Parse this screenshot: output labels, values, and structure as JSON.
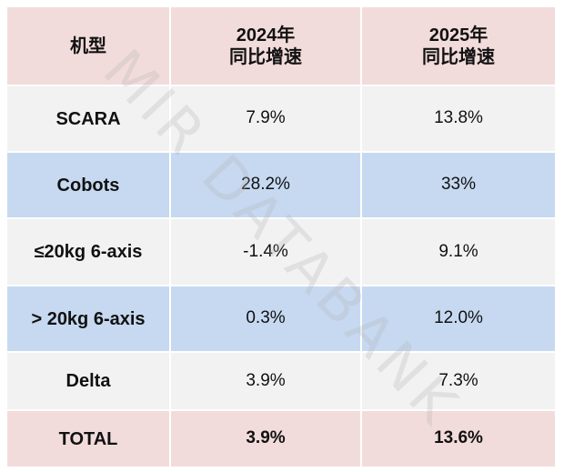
{
  "header": {
    "columns": [
      [
        "机型"
      ],
      [
        "2024年",
        "同比增速"
      ],
      [
        "2025年",
        "同比增速"
      ]
    ]
  },
  "table": {
    "rows": [
      [
        "SCARA",
        "7.9%",
        "13.8%"
      ],
      [
        "Cobots",
        "28.2%",
        "33%"
      ],
      [
        "≤20kg 6-axis",
        "-1.4%",
        "9.1%"
      ],
      [
        "> 20kg 6-axis",
        "0.3%",
        "12.0%"
      ],
      [
        "Delta",
        "3.9%",
        "7.3%"
      ],
      [
        "TOTAL",
        "3.9%",
        "13.6%"
      ]
    ]
  },
  "watermark": "MIR DATABANK"
}
